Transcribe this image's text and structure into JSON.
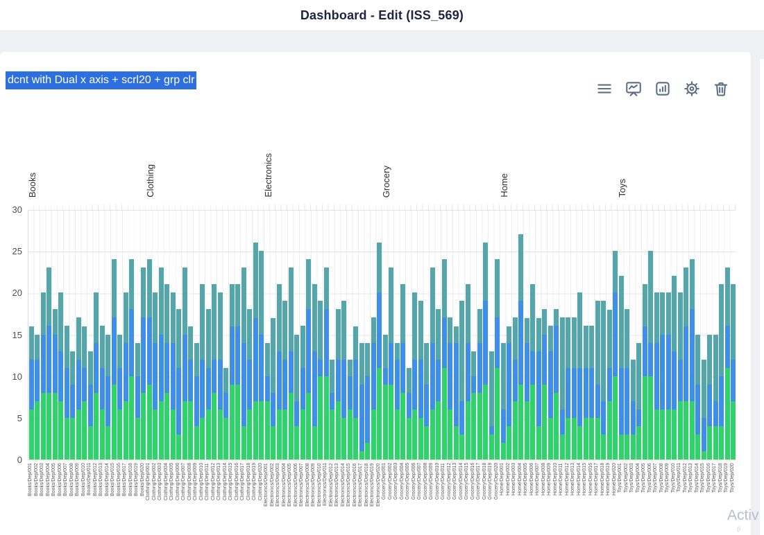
{
  "header": {
    "title": "Dashboard - Edit (ISS_569)"
  },
  "card": {
    "title": "dcnt with Dual x axis + scrl20 + grp clr",
    "toolbar": {
      "menu": "menu",
      "presentation": "presentation-chart",
      "bar_chart": "bar-chart",
      "settings": "settings",
      "delete": "delete"
    }
  },
  "watermark": {
    "line1": "Activ",
    "line2": "(i"
  },
  "chart_data": {
    "type": "bar",
    "stacked": true,
    "grid": true,
    "legend": "none",
    "ylim": [
      0,
      30
    ],
    "yticks": [
      0,
      5,
      10,
      15,
      20,
      25,
      30
    ],
    "top_axis_categories": [
      "Books",
      "Clothing",
      "Electronics",
      "Grocery",
      "Home",
      "Toys"
    ],
    "bars_per_category": 20,
    "x_labels": [
      "Books/Dep/001",
      "Books/Dep/002",
      "Books/Dep/003",
      "Books/Dep/004",
      "Books/Dep/005",
      "Books/Dep/006",
      "Books/Dep/007",
      "Books/Dep/008",
      "Books/Dep/009",
      "Books/Dep/010",
      "Books/Dep/011",
      "Books/Dep/012",
      "Books/Dep/013",
      "Books/Dep/014",
      "Books/Dep/015",
      "Books/Dep/016",
      "Books/Dep/017",
      "Books/Dep/018",
      "Books/Dep/019",
      "Books/Dep/020",
      "Clothing/Dep/001",
      "Clothing/Dep/002",
      "Clothing/Dep/003",
      "Clothing/Dep/004",
      "Clothing/Dep/005",
      "Clothing/Dep/006",
      "Clothing/Dep/007",
      "Clothing/Dep/008",
      "Clothing/Dep/009",
      "Clothing/Dep/010",
      "Clothing/Dep/011",
      "Clothing/Dep/012",
      "Clothing/Dep/013",
      "Clothing/Dep/014",
      "Clothing/Dep/015",
      "Clothing/Dep/016",
      "Clothing/Dep/017",
      "Clothing/Dep/018",
      "Clothing/Dep/019",
      "Clothing/Dep/020",
      "Electronics/Dep/001",
      "Electronics/Dep/002",
      "Electronics/Dep/003",
      "Electronics/Dep/004",
      "Electronics/Dep/005",
      "Electronics/Dep/006",
      "Electronics/Dep/007",
      "Electronics/Dep/008",
      "Electronics/Dep/009",
      "Electronics/Dep/010",
      "Electronics/Dep/011",
      "Electronics/Dep/012",
      "Electronics/Dep/013",
      "Electronics/Dep/014",
      "Electronics/Dep/015",
      "Electronics/Dep/016",
      "Electronics/Dep/017",
      "Electronics/Dep/018",
      "Electronics/Dep/019",
      "Electronics/Dep/020",
      "Grocery/Dep/001",
      "Grocery/Dep/002",
      "Grocery/Dep/003",
      "Grocery/Dep/004",
      "Grocery/Dep/005",
      "Grocery/Dep/006",
      "Grocery/Dep/007",
      "Grocery/Dep/008",
      "Grocery/Dep/009",
      "Grocery/Dep/010",
      "Grocery/Dep/011",
      "Grocery/Dep/012",
      "Grocery/Dep/013",
      "Grocery/Dep/014",
      "Grocery/Dep/015",
      "Grocery/Dep/016",
      "Grocery/Dep/017",
      "Grocery/Dep/018",
      "Grocery/Dep/019",
      "Grocery/Dep/020",
      "Home/Dep/001",
      "Home/Dep/002",
      "Home/Dep/003",
      "Home/Dep/004",
      "Home/Dep/005",
      "Home/Dep/006",
      "Home/Dep/007",
      "Home/Dep/008",
      "Home/Dep/009",
      "Home/Dep/010",
      "Home/Dep/011",
      "Home/Dep/012",
      "Home/Dep/013",
      "Home/Dep/014",
      "Home/Dep/015",
      "Home/Dep/016",
      "Home/Dep/017",
      "Home/Dep/018",
      "Home/Dep/019",
      "Home/Dep/020",
      "Toys/Dep/001",
      "Toys/Dep/002",
      "Toys/Dep/003",
      "Toys/Dep/004",
      "Toys/Dep/005",
      "Toys/Dep/006",
      "Toys/Dep/007",
      "Toys/Dep/008",
      "Toys/Dep/009",
      "Toys/Dep/010",
      "Toys/Dep/011",
      "Toys/Dep/012",
      "Toys/Dep/013",
      "Toys/Dep/014",
      "Toys/Dep/015",
      "Toys/Dep/016",
      "Toys/Dep/017",
      "Toys/Dep/018",
      "Toys/Dep/019",
      "Toys/Dep/020"
    ],
    "series": [
      {
        "name": "green",
        "color": "#2fd36c",
        "values": [
          6,
          7,
          8,
          8,
          8,
          7,
          5,
          5,
          6,
          7,
          4,
          8,
          6,
          4,
          9,
          6,
          7,
          10,
          5,
          8,
          9,
          6,
          7,
          8,
          6,
          3,
          7,
          7,
          4,
          5,
          6,
          8,
          6,
          5,
          9,
          9,
          4,
          6,
          7,
          7,
          7,
          4,
          6,
          6,
          8,
          4,
          6,
          8,
          4,
          10,
          10,
          6,
          7,
          5,
          6,
          5,
          1,
          2,
          6,
          11,
          9,
          9,
          6,
          8,
          5,
          6,
          5,
          4,
          6,
          7,
          11,
          6,
          4,
          3,
          7,
          8,
          8,
          9,
          3,
          11,
          2,
          4,
          7,
          9,
          7,
          9,
          4,
          9,
          5,
          8,
          3,
          5,
          5,
          4,
          5,
          5,
          5,
          3,
          7,
          10,
          3,
          3,
          3,
          4,
          10,
          10,
          6,
          6,
          6,
          6,
          7,
          7,
          7,
          3,
          1,
          4,
          4,
          4,
          11,
          7
        ]
      },
      {
        "name": "blue",
        "color": "#3f8ee8",
        "values": [
          6,
          5,
          7,
          8,
          7,
          6,
          6,
          4,
          6,
          4,
          5,
          6,
          5,
          6,
          8,
          5,
          7,
          8,
          5,
          9,
          8,
          8,
          8,
          6,
          8,
          8,
          8,
          5,
          6,
          7,
          5,
          4,
          6,
          3,
          7,
          7,
          10,
          6,
          10,
          8,
          3,
          4,
          7,
          6,
          5,
          3,
          5,
          10,
          9,
          2,
          8,
          2,
          5,
          7,
          4,
          7,
          8,
          8,
          8,
          9,
          2,
          5,
          6,
          6,
          3,
          6,
          7,
          5,
          8,
          5,
          6,
          8,
          10,
          4,
          7,
          2,
          6,
          10,
          1,
          6,
          4,
          10,
          5,
          10,
          7,
          4,
          9,
          6,
          8,
          8,
          3,
          6,
          6,
          7,
          6,
          6,
          4,
          4,
          4,
          10,
          8,
          8,
          4,
          2,
          6,
          4,
          8,
          9,
          9,
          7,
          5,
          9,
          11,
          6,
          4,
          5,
          3,
          6,
          5,
          5
        ]
      },
      {
        "name": "teal",
        "color": "#55a6ab",
        "values": [
          4,
          3,
          5,
          7,
          3,
          7,
          5,
          4,
          5,
          5,
          4,
          6,
          5,
          5,
          7,
          4,
          6,
          6,
          4,
          6,
          7,
          6,
          8,
          7,
          6,
          7,
          8,
          4,
          4,
          9,
          7,
          9,
          8,
          3,
          5,
          5,
          9,
          6,
          9,
          10,
          4,
          9,
          8,
          7,
          10,
          8,
          5,
          6,
          8,
          7,
          5,
          4,
          6,
          7,
          2,
          4,
          5,
          4,
          3,
          6,
          4,
          9,
          2,
          7,
          3,
          8,
          7,
          5,
          9,
          6,
          7,
          3,
          2,
          12,
          7,
          3,
          4,
          7,
          9,
          7,
          8,
          2,
          5,
          8,
          3,
          8,
          4,
          3,
          3,
          2,
          11,
          6,
          6,
          9,
          5,
          5,
          10,
          12,
          7,
          5,
          11,
          7,
          5,
          8,
          5,
          11,
          6,
          5,
          5,
          9,
          8,
          7,
          6,
          6,
          7,
          6,
          8,
          11,
          7,
          9
        ]
      }
    ]
  }
}
